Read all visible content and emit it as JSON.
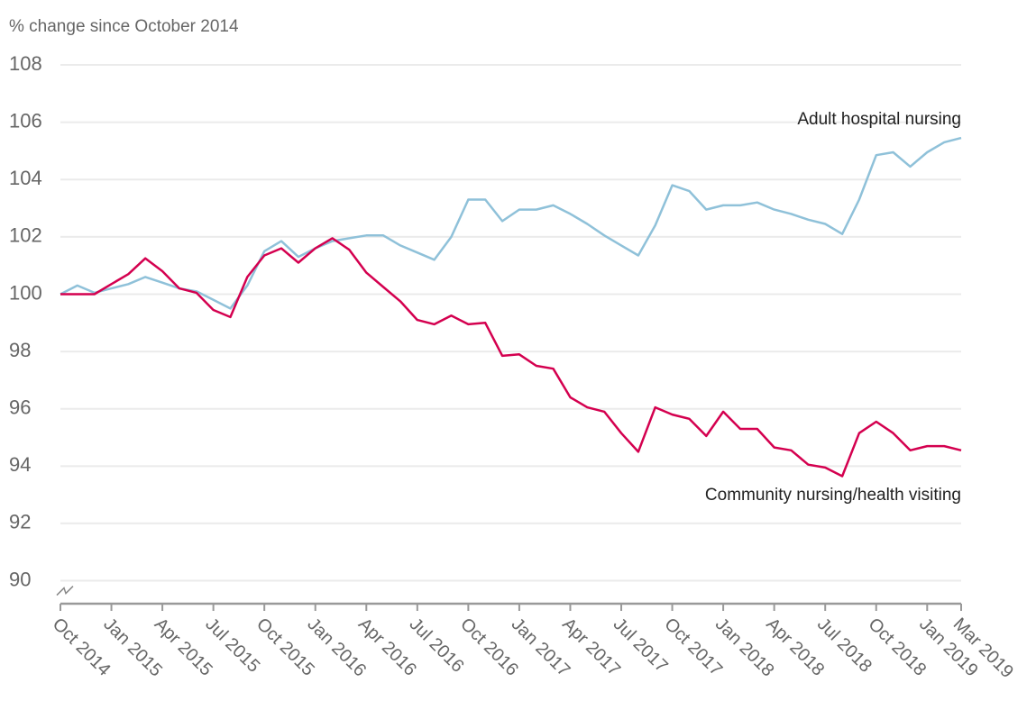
{
  "chart_data": {
    "type": "line",
    "y_axis_label": "% change since October 2014",
    "categories": [
      "Oct 2014",
      null,
      null,
      "Jan 2015",
      null,
      null,
      "Apr 2015",
      null,
      null,
      "Jul 2015",
      null,
      null,
      "Oct 2015",
      null,
      null,
      "Jan 2016",
      null,
      null,
      "Apr 2016",
      null,
      null,
      "Jul 2016",
      null,
      null,
      "Oct 2016",
      null,
      null,
      "Jan 2017",
      null,
      null,
      "Apr 2017",
      null,
      null,
      "Jul 2017",
      null,
      null,
      "Oct 2017",
      null,
      null,
      "Jan 2018",
      null,
      null,
      "Apr 2018",
      null,
      null,
      "Jul 2018",
      null,
      null,
      "Oct 2018",
      null,
      null,
      "Jan 2019",
      null,
      "Mar 2019"
    ],
    "series": [
      {
        "name": "Adult hospital nursing",
        "color": "#8fc1d9",
        "values": [
          100,
          100.3,
          100.05,
          100.2,
          100.35,
          100.6,
          100.4,
          100.2,
          100.1,
          99.8,
          99.5,
          100.3,
          101.5,
          101.85,
          101.3,
          101.6,
          101.85,
          101.95,
          102.05,
          102.05,
          101.7,
          101.45,
          101.2,
          102.0,
          103.3,
          103.3,
          102.55,
          102.95,
          102.95,
          103.1,
          102.8,
          102.45,
          102.05,
          101.7,
          101.35,
          102.4,
          103.8,
          103.6,
          102.95,
          103.1,
          103.1,
          103.2,
          102.95,
          102.8,
          102.6,
          102.45,
          102.1,
          103.3,
          104.85,
          104.95,
          104.45,
          104.95,
          105.3,
          105.45
        ]
      },
      {
        "name": "Community nursing/health visiting",
        "color": "#d4004f",
        "values": [
          100,
          100,
          100,
          100.35,
          100.7,
          101.25,
          100.8,
          100.2,
          100.05,
          99.45,
          99.2,
          100.6,
          101.35,
          101.6,
          101.1,
          101.6,
          101.95,
          101.55,
          100.75,
          100.25,
          99.75,
          99.1,
          98.95,
          99.25,
          98.95,
          99.0,
          97.85,
          97.9,
          97.5,
          97.4,
          96.4,
          96.05,
          95.9,
          95.15,
          94.5,
          96.05,
          95.8,
          95.65,
          95.05,
          95.9,
          95.3,
          95.3,
          94.65,
          94.55,
          94.05,
          93.95,
          93.65,
          95.15,
          95.55,
          95.15,
          94.55,
          94.7,
          94.7,
          94.55
        ]
      }
    ],
    "ylim": [
      89.2,
      108
    ],
    "yticks": [
      90,
      92,
      94,
      96,
      98,
      100,
      102,
      104,
      106,
      108
    ],
    "grid": true
  }
}
